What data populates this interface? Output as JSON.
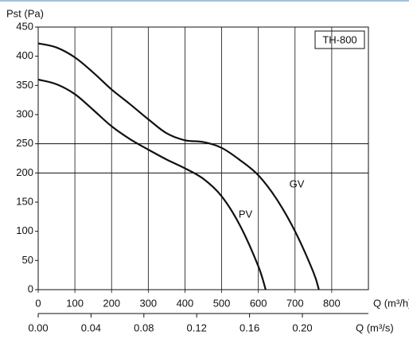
{
  "chart_data": {
    "type": "line",
    "y_label": "Pst (Pa)",
    "x_label": "Q (m³/h)",
    "x2_label": "Q (m³/s)",
    "legend_title": "TH-800",
    "xlim": [
      0,
      900
    ],
    "xticks": [
      0,
      100,
      200,
      300,
      400,
      500,
      600,
      700,
      800
    ],
    "x2lim": [
      0,
      0.25
    ],
    "x2ticks": [
      {
        "value": 0,
        "label": "0.00"
      },
      {
        "value": 0.04,
        "label": "0.04"
      },
      {
        "value": 0.08,
        "label": "0.08"
      },
      {
        "value": 0.12,
        "label": "0.12"
      },
      {
        "value": 0.16,
        "label": "0.16"
      },
      {
        "value": 0.2,
        "label": "0.20"
      }
    ],
    "ylim": [
      0,
      450
    ],
    "yticks": [
      0,
      50,
      100,
      150,
      200,
      250,
      300,
      350,
      400,
      450
    ],
    "hlines": [
      200,
      250
    ],
    "series": [
      {
        "name": "GV",
        "color": "#111111",
        "x": [
          0,
          50,
          100,
          150,
          200,
          250,
          300,
          350,
          400,
          450,
          500,
          550,
          600,
          650,
          700,
          750,
          765
        ],
        "values": [
          422,
          415,
          398,
          372,
          343,
          318,
          292,
          268,
          256,
          253,
          243,
          222,
          196,
          155,
          100,
          30,
          0
        ],
        "label_at": [
          705,
          180
        ]
      },
      {
        "name": "PV",
        "color": "#111111",
        "x": [
          0,
          50,
          100,
          150,
          200,
          250,
          300,
          350,
          400,
          450,
          500,
          550,
          600,
          620
        ],
        "values": [
          360,
          352,
          335,
          308,
          280,
          258,
          240,
          223,
          208,
          190,
          160,
          110,
          40,
          0
        ],
        "label_at": [
          565,
          128
        ]
      }
    ]
  }
}
